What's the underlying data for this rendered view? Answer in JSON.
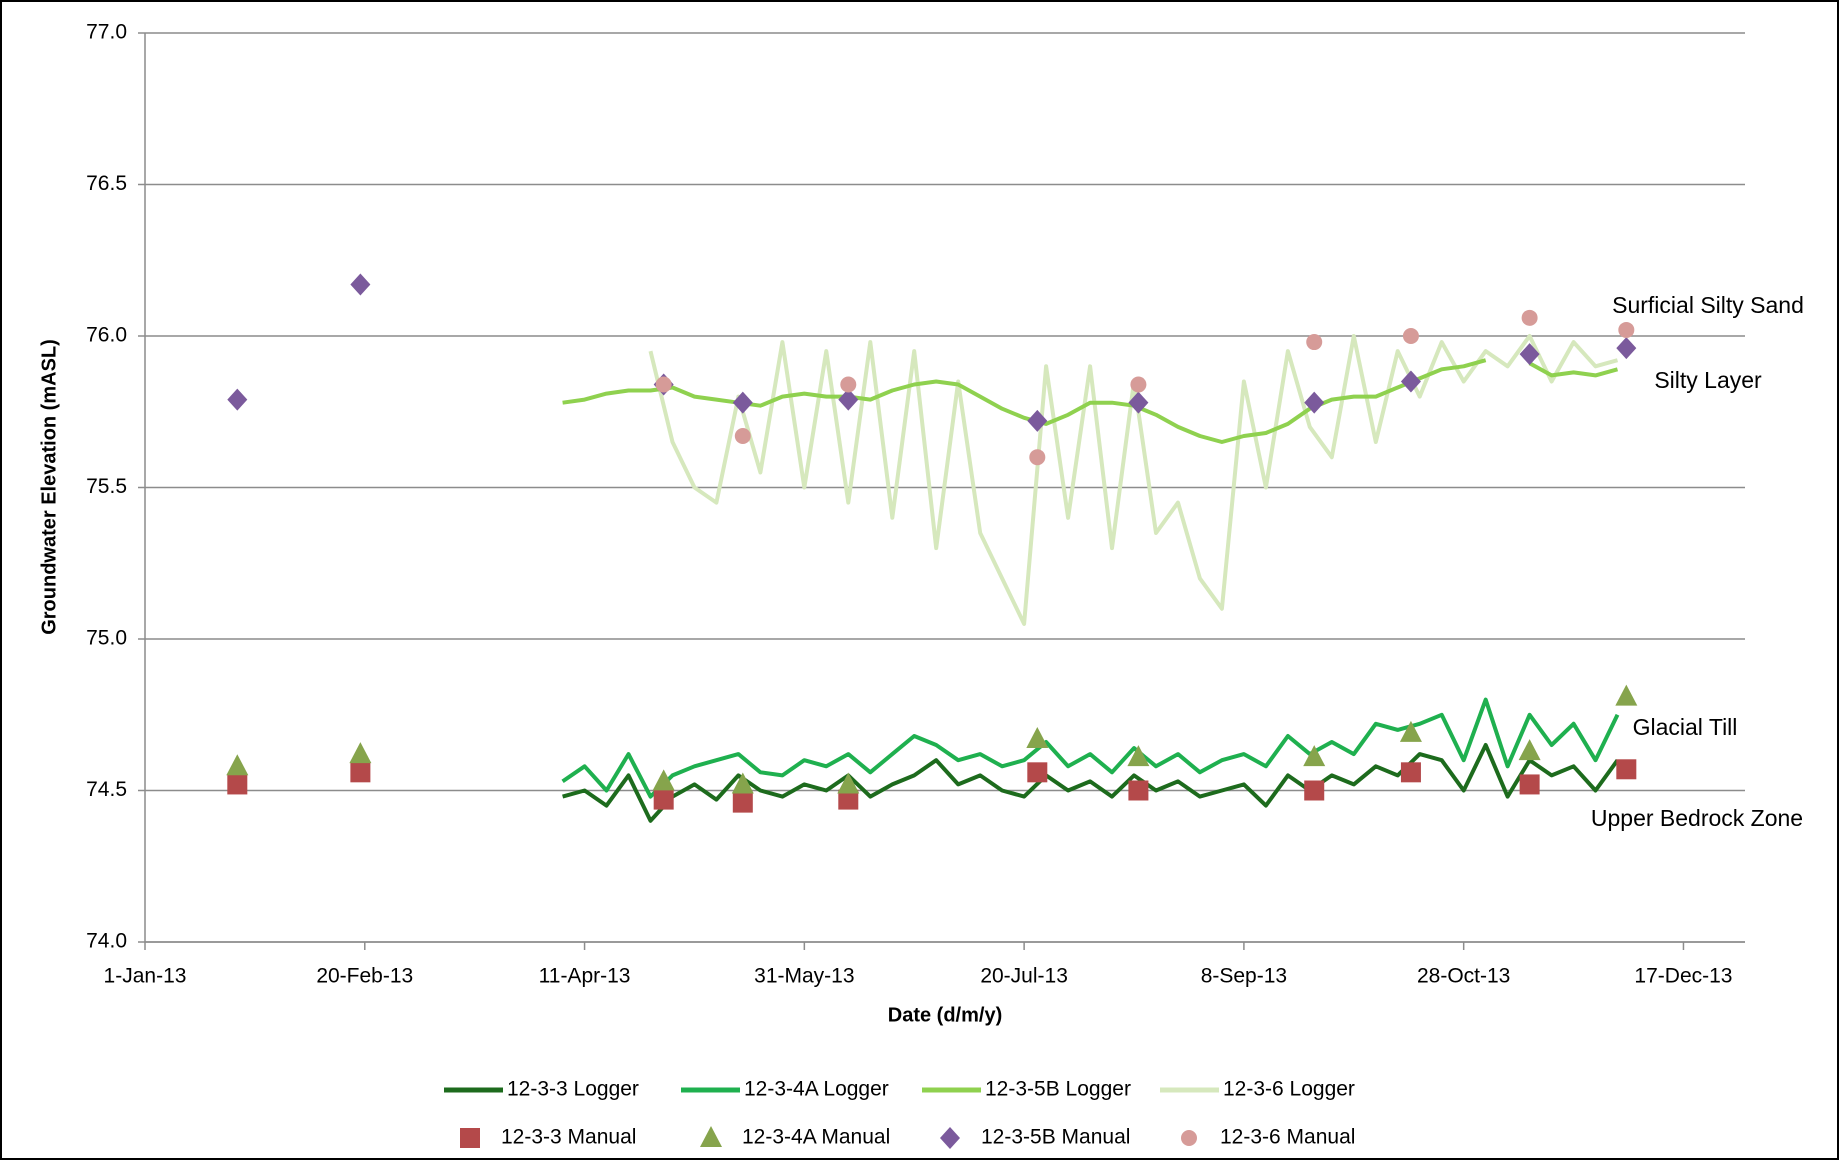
{
  "chart_data": {
    "type": "line",
    "xlabel": "Date (d/m/y)",
    "ylabel": "Groundwater Elevation (mASL)",
    "xlim": [
      "2013-01-01",
      "2013-12-31"
    ],
    "xticks": [
      {
        "value": "2013-01-01",
        "label": "1-Jan-13"
      },
      {
        "value": "2013-02-20",
        "label": "20-Feb-13"
      },
      {
        "value": "2013-04-11",
        "label": "11-Apr-13"
      },
      {
        "value": "2013-05-31",
        "label": "31-May-13"
      },
      {
        "value": "2013-07-20",
        "label": "20-Jul-13"
      },
      {
        "value": "2013-09-08",
        "label": "8-Sep-13"
      },
      {
        "value": "2013-10-28",
        "label": "28-Oct-13"
      },
      {
        "value": "2013-12-17",
        "label": "17-Dec-13"
      }
    ],
    "ylim": [
      74,
      77
    ],
    "yticks": [
      {
        "value": 74,
        "label": "74.0"
      },
      {
        "value": 74.5,
        "label": "74.5"
      },
      {
        "value": 75,
        "label": "75.0"
      },
      {
        "value": 75.5,
        "label": "75.5"
      },
      {
        "value": 76,
        "label": "76.0"
      },
      {
        "value": 76.5,
        "label": "76.5"
      },
      {
        "value": 77,
        "label": "77.0"
      }
    ],
    "grid": true,
    "legend": "bottom",
    "annotations": [
      "Surficial Silty Sand",
      "Silty Layer",
      "Glacial Till",
      "Upper Bedrock Zone"
    ],
    "series": [
      {
        "name": "12-3-3 Logger",
        "mark": "line",
        "color": "#1d6b1d",
        "x": [
          "2013-04-06",
          "2013-04-11",
          "2013-04-16",
          "2013-04-21",
          "2013-04-26",
          "2013-05-01",
          "2013-05-06",
          "2013-05-11",
          "2013-05-16",
          "2013-05-21",
          "2013-05-26",
          "2013-05-31",
          "2013-06-05",
          "2013-06-10",
          "2013-06-15",
          "2013-06-20",
          "2013-06-25",
          "2013-06-30",
          "2013-07-05",
          "2013-07-10",
          "2013-07-15",
          "2013-07-20",
          "2013-07-25",
          "2013-07-30",
          "2013-08-04",
          "2013-08-09",
          "2013-08-14",
          "2013-08-19",
          "2013-08-24",
          "2013-08-29",
          "2013-09-03",
          "2013-09-08",
          "2013-09-13",
          "2013-09-18",
          "2013-09-23",
          "2013-09-28",
          "2013-10-03",
          "2013-10-08",
          "2013-10-13",
          "2013-10-18",
          "2013-10-23",
          "2013-10-28",
          "2013-11-02",
          "2013-11-07",
          "2013-11-12",
          "2013-11-17",
          "2013-11-22",
          "2013-11-27",
          "2013-12-02",
          "2013-12-07"
        ],
        "values": [
          74.48,
          74.5,
          74.45,
          74.55,
          74.4,
          74.48,
          74.52,
          74.47,
          74.55,
          74.5,
          74.48,
          74.52,
          74.5,
          74.55,
          74.48,
          74.52,
          74.55,
          74.6,
          74.52,
          74.55,
          74.5,
          74.48,
          74.55,
          74.5,
          74.53,
          74.48,
          74.55,
          74.5,
          74.53,
          74.48,
          74.5,
          74.52,
          74.45,
          74.55,
          74.5,
          74.55,
          74.52,
          74.58,
          74.55,
          74.62,
          74.6,
          74.5,
          74.65,
          74.48,
          74.6,
          74.55,
          74.58,
          74.5,
          74.6,
          null
        ]
      },
      {
        "name": "12-3-4A Logger",
        "mark": "line",
        "color": "#1fb04f",
        "x": [
          "2013-04-06",
          "2013-04-11",
          "2013-04-16",
          "2013-04-21",
          "2013-04-26",
          "2013-05-01",
          "2013-05-06",
          "2013-05-11",
          "2013-05-16",
          "2013-05-21",
          "2013-05-26",
          "2013-05-31",
          "2013-06-05",
          "2013-06-10",
          "2013-06-15",
          "2013-06-20",
          "2013-06-25",
          "2013-06-30",
          "2013-07-05",
          "2013-07-10",
          "2013-07-15",
          "2013-07-20",
          "2013-07-25",
          "2013-07-30",
          "2013-08-04",
          "2013-08-09",
          "2013-08-14",
          "2013-08-19",
          "2013-08-24",
          "2013-08-29",
          "2013-09-03",
          "2013-09-08",
          "2013-09-13",
          "2013-09-18",
          "2013-09-23",
          "2013-09-28",
          "2013-10-03",
          "2013-10-08",
          "2013-10-13",
          "2013-10-18",
          "2013-10-23",
          "2013-10-28",
          "2013-11-02",
          "2013-11-07",
          "2013-11-12",
          "2013-11-17",
          "2013-11-22",
          "2013-11-27",
          "2013-12-02",
          "2013-12-07"
        ],
        "values": [
          74.53,
          74.58,
          74.5,
          74.62,
          74.48,
          74.55,
          74.58,
          74.6,
          74.62,
          74.56,
          74.55,
          74.6,
          74.58,
          74.62,
          74.56,
          74.62,
          74.68,
          74.65,
          74.6,
          74.62,
          74.58,
          74.6,
          74.66,
          74.58,
          74.62,
          74.56,
          74.64,
          74.58,
          74.62,
          74.56,
          74.6,
          74.62,
          74.58,
          74.68,
          74.62,
          74.66,
          74.62,
          74.72,
          74.7,
          74.72,
          74.75,
          74.6,
          74.8,
          74.58,
          74.75,
          74.65,
          74.72,
          74.6,
          74.75,
          null
        ]
      },
      {
        "name": "12-3-5B Logger",
        "mark": "line",
        "color": "#8fd14f",
        "x": [
          "2013-04-06",
          "2013-04-11",
          "2013-04-16",
          "2013-04-21",
          "2013-04-26",
          "2013-05-01",
          "2013-05-06",
          "2013-05-11",
          "2013-05-16",
          "2013-05-21",
          "2013-05-26",
          "2013-05-31",
          "2013-06-05",
          "2013-06-10",
          "2013-06-15",
          "2013-06-20",
          "2013-06-25",
          "2013-06-30",
          "2013-07-05",
          "2013-07-10",
          "2013-07-15",
          "2013-07-20",
          "2013-07-25",
          "2013-07-30",
          "2013-08-04",
          "2013-08-09",
          "2013-08-14",
          "2013-08-19",
          "2013-08-24",
          "2013-08-29",
          "2013-09-03",
          "2013-09-08",
          "2013-09-13",
          "2013-09-18",
          "2013-09-23",
          "2013-09-28",
          "2013-10-03",
          "2013-10-08",
          "2013-10-13",
          "2013-10-18",
          "2013-10-23",
          "2013-10-28",
          "2013-11-02",
          "2013-11-07",
          "2013-11-12",
          "2013-11-17",
          "2013-11-22",
          "2013-11-27",
          "2013-12-02",
          "2013-12-07"
        ],
        "values": [
          75.78,
          75.79,
          75.81,
          75.82,
          75.82,
          75.83,
          75.8,
          75.79,
          75.78,
          75.77,
          75.8,
          75.81,
          75.8,
          75.8,
          75.79,
          75.82,
          75.84,
          75.85,
          75.84,
          75.8,
          75.76,
          75.73,
          75.71,
          75.74,
          75.78,
          75.78,
          75.77,
          75.74,
          75.7,
          75.67,
          75.65,
          75.67,
          75.68,
          75.71,
          75.76,
          75.79,
          75.8,
          75.8,
          75.83,
          75.86,
          75.89,
          75.9,
          75.92,
          null,
          75.91,
          75.87,
          75.88,
          75.87,
          75.89,
          null
        ]
      },
      {
        "name": "12-3-6 Logger",
        "mark": "line",
        "color": "#d6e8bd",
        "x": [
          "2013-04-06",
          "2013-04-11",
          "2013-04-16",
          "2013-04-21",
          "2013-04-26",
          "2013-05-01",
          "2013-05-06",
          "2013-05-11",
          "2013-05-16",
          "2013-05-21",
          "2013-05-26",
          "2013-05-31",
          "2013-06-05",
          "2013-06-10",
          "2013-06-15",
          "2013-06-20",
          "2013-06-25",
          "2013-06-30",
          "2013-07-05",
          "2013-07-10",
          "2013-07-15",
          "2013-07-20",
          "2013-07-25",
          "2013-07-30",
          "2013-08-04",
          "2013-08-09",
          "2013-08-14",
          "2013-08-19",
          "2013-08-24",
          "2013-08-29",
          "2013-09-03",
          "2013-09-08",
          "2013-09-13",
          "2013-09-18",
          "2013-09-23",
          "2013-09-28",
          "2013-10-03",
          "2013-10-08",
          "2013-10-13",
          "2013-10-18",
          "2013-10-23",
          "2013-10-28",
          "2013-11-02",
          "2013-11-07",
          "2013-11-12",
          "2013-11-17",
          "2013-11-22",
          "2013-11-27",
          "2013-12-02",
          "2013-12-07"
        ],
        "values": [
          null,
          null,
          null,
          null,
          75.95,
          75.65,
          75.5,
          75.45,
          75.8,
          75.55,
          75.98,
          75.5,
          75.95,
          75.45,
          75.98,
          75.4,
          75.95,
          75.3,
          75.85,
          75.35,
          75.2,
          75.05,
          75.9,
          75.4,
          75.9,
          75.3,
          75.85,
          75.35,
          75.45,
          75.2,
          75.1,
          75.85,
          75.5,
          75.95,
          75.7,
          75.6,
          76.0,
          75.65,
          75.95,
          75.8,
          75.98,
          75.85,
          75.95,
          75.9,
          76.0,
          75.85,
          75.98,
          75.9,
          75.92,
          null
        ]
      },
      {
        "name": "12-3-3 Manual",
        "mark": "square",
        "color": "#b4494a",
        "x": [
          "2013-01-22",
          "2013-02-19",
          "2013-04-29",
          "2013-05-17",
          "2013-06-10",
          "2013-07-23",
          "2013-08-15",
          "2013-09-24",
          "2013-10-16",
          "2013-11-12",
          "2013-12-04"
        ],
        "values": [
          74.52,
          74.56,
          74.47,
          74.46,
          74.47,
          74.56,
          74.5,
          74.5,
          74.56,
          74.52,
          74.57
        ]
      },
      {
        "name": "12-3-4A Manual",
        "mark": "triangle",
        "color": "#86a44c",
        "x": [
          "2013-01-22",
          "2013-02-19",
          "2013-04-29",
          "2013-05-17",
          "2013-06-10",
          "2013-07-23",
          "2013-08-15",
          "2013-09-24",
          "2013-10-16",
          "2013-11-12",
          "2013-12-04"
        ],
        "values": [
          74.58,
          74.62,
          74.53,
          74.52,
          74.52,
          74.67,
          74.61,
          74.61,
          74.69,
          74.63,
          74.81
        ]
      },
      {
        "name": "12-3-5B Manual",
        "mark": "diamond",
        "color": "#7b5a9c",
        "x": [
          "2013-01-22",
          "2013-02-19",
          "2013-04-29",
          "2013-05-17",
          "2013-06-10",
          "2013-07-23",
          "2013-08-15",
          "2013-09-24",
          "2013-10-16",
          "2013-11-12",
          "2013-12-04"
        ],
        "values": [
          75.79,
          76.17,
          75.84,
          75.78,
          75.79,
          75.72,
          75.78,
          75.78,
          75.85,
          75.94,
          75.96
        ]
      },
      {
        "name": "12-3-6 Manual",
        "mark": "circle",
        "color": "#d69b98",
        "x": [
          "2013-04-29",
          "2013-05-17",
          "2013-06-10",
          "2013-07-23",
          "2013-08-15",
          "2013-09-24",
          "2013-10-16",
          "2013-11-12",
          "2013-12-04"
        ],
        "values": [
          75.84,
          75.67,
          75.84,
          75.6,
          75.84,
          75.98,
          76.0,
          76.06,
          76.02
        ]
      }
    ]
  }
}
